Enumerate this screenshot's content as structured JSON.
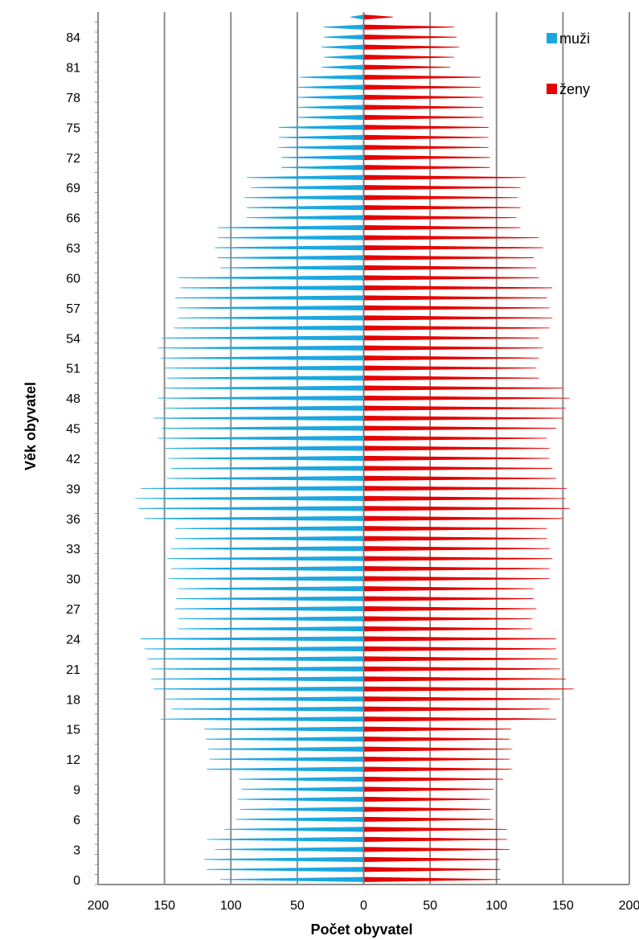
{
  "chart_data": {
    "type": "bar",
    "orientation": "horizontal-population-pyramid",
    "title": "",
    "xlabel": "Počet obyvatel",
    "ylabel": "Věk obyvatel",
    "xlim": [
      -200,
      200
    ],
    "x_tick_values": [
      -200,
      -150,
      -100,
      -50,
      0,
      50,
      100,
      150,
      200
    ],
    "x_tick_labels": [
      "200",
      "150",
      "100",
      "50",
      "0",
      "50",
      "100",
      "150",
      "200"
    ],
    "y_tick_labels": [
      "0",
      "3",
      "6",
      "9",
      "12",
      "15",
      "18",
      "21",
      "24",
      "27",
      "30",
      "33",
      "36",
      "39",
      "42",
      "45",
      "48",
      "51",
      "54",
      "57",
      "60",
      "63",
      "66",
      "69",
      "72",
      "75",
      "78",
      "81",
      "84"
    ],
    "ages": [
      0,
      1,
      2,
      3,
      4,
      5,
      6,
      7,
      8,
      9,
      10,
      11,
      12,
      13,
      14,
      15,
      16,
      17,
      18,
      19,
      20,
      21,
      22,
      23,
      24,
      25,
      26,
      27,
      28,
      29,
      30,
      31,
      32,
      33,
      34,
      35,
      36,
      37,
      38,
      39,
      40,
      41,
      42,
      43,
      44,
      45,
      46,
      47,
      48,
      49,
      50,
      51,
      52,
      53,
      54,
      55,
      56,
      57,
      58,
      59,
      60,
      61,
      62,
      63,
      64,
      65,
      66,
      67,
      68,
      69,
      70,
      71,
      72,
      73,
      74,
      75,
      76,
      77,
      78,
      79,
      80,
      81,
      82,
      83,
      84,
      85,
      86
    ],
    "legend_position": "top-right",
    "grid": true,
    "series": [
      {
        "name": "muži",
        "color": "#1aa7e0",
        "values": [
          108,
          118,
          120,
          112,
          118,
          105,
          96,
          93,
          95,
          92,
          94,
          118,
          116,
          117,
          119,
          120,
          153,
          145,
          150,
          158,
          160,
          160,
          163,
          165,
          168,
          140,
          140,
          142,
          141,
          140,
          147,
          145,
          148,
          145,
          142,
          142,
          165,
          170,
          172,
          168,
          148,
          145,
          147,
          150,
          155,
          152,
          158,
          150,
          155,
          150,
          148,
          150,
          153,
          155,
          152,
          143,
          140,
          140,
          142,
          138,
          140,
          108,
          110,
          112,
          110,
          110,
          88,
          88,
          90,
          85,
          88,
          62,
          62,
          64,
          64,
          64,
          50,
          50,
          50,
          50,
          48,
          32,
          30,
          32,
          30,
          30,
          10
        ]
      },
      {
        "name": "ženy",
        "color": "#e60000",
        "values": [
          103,
          103,
          102,
          110,
          108,
          108,
          98,
          96,
          95,
          98,
          105,
          112,
          110,
          112,
          110,
          111,
          145,
          140,
          148,
          158,
          152,
          148,
          146,
          145,
          145,
          127,
          127,
          130,
          128,
          128,
          140,
          140,
          142,
          140,
          138,
          138,
          150,
          155,
          152,
          153,
          145,
          142,
          140,
          140,
          138,
          145,
          150,
          152,
          155,
          150,
          132,
          130,
          132,
          135,
          132,
          140,
          142,
          140,
          138,
          142,
          132,
          130,
          128,
          135,
          132,
          118,
          115,
          118,
          116,
          118,
          122,
          95,
          95,
          94,
          94,
          94,
          90,
          90,
          90,
          88,
          88,
          65,
          68,
          72,
          70,
          68,
          22
        ]
      }
    ]
  }
}
